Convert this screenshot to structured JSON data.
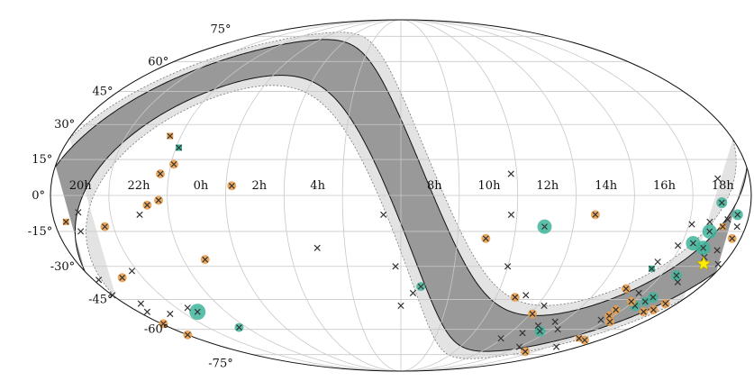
{
  "chart_data": {
    "type": "scatter",
    "projection": "mollweide",
    "grid": true,
    "lat_ticks": [
      "75°",
      "60°",
      "45°",
      "30°",
      "15°",
      "0°",
      "-15°",
      "-30°",
      "-45°",
      "-60°",
      "-75°"
    ],
    "lat_values": [
      75,
      60,
      45,
      30,
      15,
      0,
      -15,
      -30,
      -45,
      -60,
      -75
    ],
    "ra_ticks": [
      "4h",
      "2h",
      "0h",
      "22h",
      "20h",
      "18h",
      "16h",
      "14h",
      "12h",
      "10h",
      "8h"
    ],
    "ra_values": [
      4,
      2,
      0,
      22,
      20,
      18,
      16,
      14,
      12,
      10,
      8
    ],
    "band": {
      "inner_halfwidth_deg": 10,
      "outer_halfwidth_deg": 15,
      "inner_color": "#999999",
      "outer_color": "#e3e3e3"
    },
    "center_star": {
      "ra_h": 17.76,
      "dec": -28.9,
      "color": "#ffee00"
    },
    "colors": {
      "orange": "#e9a04f",
      "teal": "#3fb49a",
      "cross": "#333333"
    },
    "series": [
      {
        "marker": "teal-circle-cross",
        "points": [
          {
            "ra_h": 17.5,
            "dec": -3,
            "r": 6
          },
          {
            "ra_h": 17.3,
            "dec": -15,
            "r": 8
          },
          {
            "ra_h": 18.1,
            "dec": -8,
            "r": 6
          },
          {
            "ra_h": 16.9,
            "dec": -20,
            "r": 8
          },
          {
            "ra_h": 17.35,
            "dec": -22,
            "r": 8
          },
          {
            "ra_h": 17.1,
            "dec": -34,
            "r": 6
          },
          {
            "ra_h": 17.1,
            "dec": -44,
            "r": 6
          },
          {
            "ra_h": 16.8,
            "dec": -48,
            "r": 6
          },
          {
            "ra_h": 17.0,
            "dec": -46,
            "r": 5
          },
          {
            "ra_h": 14.0,
            "dec": -61,
            "r": 6
          },
          {
            "ra_h": 11.5,
            "dec": -13,
            "r": 8
          },
          {
            "ra_h": 21.2,
            "dec": -51,
            "r": 9
          },
          {
            "ra_h": 22.1,
            "dec": -59,
            "r": 5
          },
          {
            "ra_h": 7.3,
            "dec": -39,
            "r": 5
          }
        ]
      },
      {
        "marker": "teal-square-cross",
        "points": [
          {
            "ra_h": 22.6,
            "dec": 20
          },
          {
            "ra_h": 15.95,
            "dec": -31
          }
        ]
      },
      {
        "marker": "orange-circle-cross",
        "points": [
          {
            "ra_h": 0.7,
            "dec": 4
          },
          {
            "ra_h": 22.6,
            "dec": 13
          },
          {
            "ra_h": 22.2,
            "dec": 9
          },
          {
            "ra_h": 22.2,
            "dec": -2
          },
          {
            "ra_h": 21.8,
            "dec": -4
          },
          {
            "ra_h": 23.3,
            "dec": -27
          },
          {
            "ra_h": 20.2,
            "dec": -13
          },
          {
            "ra_h": 19.7,
            "dec": -35
          },
          {
            "ra_h": 18.2,
            "dec": -18
          },
          {
            "ra_h": 18.0,
            "dec": -47
          },
          {
            "ra_h": 17.9,
            "dec": -50
          },
          {
            "ra_h": 17.6,
            "dec": -51
          },
          {
            "ra_h": 16.4,
            "dec": -46
          },
          {
            "ra_h": 16.2,
            "dec": -50
          },
          {
            "ra_h": 16.3,
            "dec": -53
          },
          {
            "ra_h": 15.6,
            "dec": -40
          },
          {
            "ra_h": 16.8,
            "dec": -56
          },
          {
            "ra_h": 18.6,
            "dec": -57
          },
          {
            "ra_h": 18.5,
            "dec": -63
          },
          {
            "ra_h": 17.6,
            "dec": -66
          },
          {
            "ra_h": 15.8,
            "dec": -73
          },
          {
            "ra_h": 13.2,
            "dec": -8
          },
          {
            "ra_h": 9.5,
            "dec": -18
          },
          {
            "ra_h": 12.6,
            "dec": -52
          },
          {
            "ra_h": 11.3,
            "dec": -44
          }
        ]
      },
      {
        "marker": "orange-square-cross",
        "points": [
          {
            "ra_h": 22.1,
            "dec": 25
          },
          {
            "ra_h": 18.9,
            "dec": -11
          },
          {
            "ra_h": 17.7,
            "dec": -13
          },
          {
            "ra_h": 17.0,
            "dec": -65
          }
        ]
      },
      {
        "marker": "cross",
        "points": [
          {
            "ra_h": 17.4,
            "dec": 7
          },
          {
            "ra_h": 10.3,
            "dec": 9
          },
          {
            "ra_h": 10.3,
            "dec": -8
          },
          {
            "ra_h": 3.5,
            "dec": -22
          },
          {
            "ra_h": 21.5,
            "dec": -8
          },
          {
            "ra_h": 19.4,
            "dec": -7
          },
          {
            "ra_h": 19.3,
            "dec": -15
          },
          {
            "ra_h": 18.2,
            "dec": -13
          },
          {
            "ra_h": 17.8,
            "dec": -10
          },
          {
            "ra_h": 17.2,
            "dec": -11
          },
          {
            "ra_h": 16.6,
            "dec": -12
          },
          {
            "ra_h": 16.4,
            "dec": -21
          },
          {
            "ra_h": 16.0,
            "dec": -28
          },
          {
            "ra_h": 17.9,
            "dec": -23
          },
          {
            "ra_h": 17.6,
            "dec": -26
          },
          {
            "ra_h": 18.3,
            "dec": -29
          },
          {
            "ra_h": 17.4,
            "dec": -37
          },
          {
            "ra_h": 18.7,
            "dec": -36
          },
          {
            "ra_h": 18.5,
            "dec": -43
          },
          {
            "ra_h": 16.3,
            "dec": -42
          },
          {
            "ra_h": 20.3,
            "dec": -32
          },
          {
            "ra_h": 19.2,
            "dec": -47
          },
          {
            "ra_h": 19.8,
            "dec": -52
          },
          {
            "ra_h": 18.9,
            "dec": -51
          },
          {
            "ra_h": 16.2,
            "dec": -55
          },
          {
            "ra_h": 14.8,
            "dec": -60
          },
          {
            "ra_h": 14.1,
            "dec": -56
          },
          {
            "ra_h": 13.5,
            "dec": -58
          },
          {
            "ra_h": 13.2,
            "dec": -62
          },
          {
            "ra_h": 12.4,
            "dec": -65
          },
          {
            "ra_h": 12.8,
            "dec": -48
          },
          {
            "ra_h": 11.7,
            "dec": -43
          },
          {
            "ra_h": 10.5,
            "dec": -30
          },
          {
            "ra_h": 7.0,
            "dec": -42
          },
          {
            "ra_h": 6.3,
            "dec": -30
          },
          {
            "ra_h": 5.9,
            "dec": -8
          },
          {
            "ra_h": 14.5,
            "dec": -70
          },
          {
            "ra_h": 17.0,
            "dec": -70
          },
          {
            "ra_h": 6.5,
            "dec": -48
          },
          {
            "ra_h": 21.0,
            "dec": -49
          }
        ]
      }
    ]
  }
}
